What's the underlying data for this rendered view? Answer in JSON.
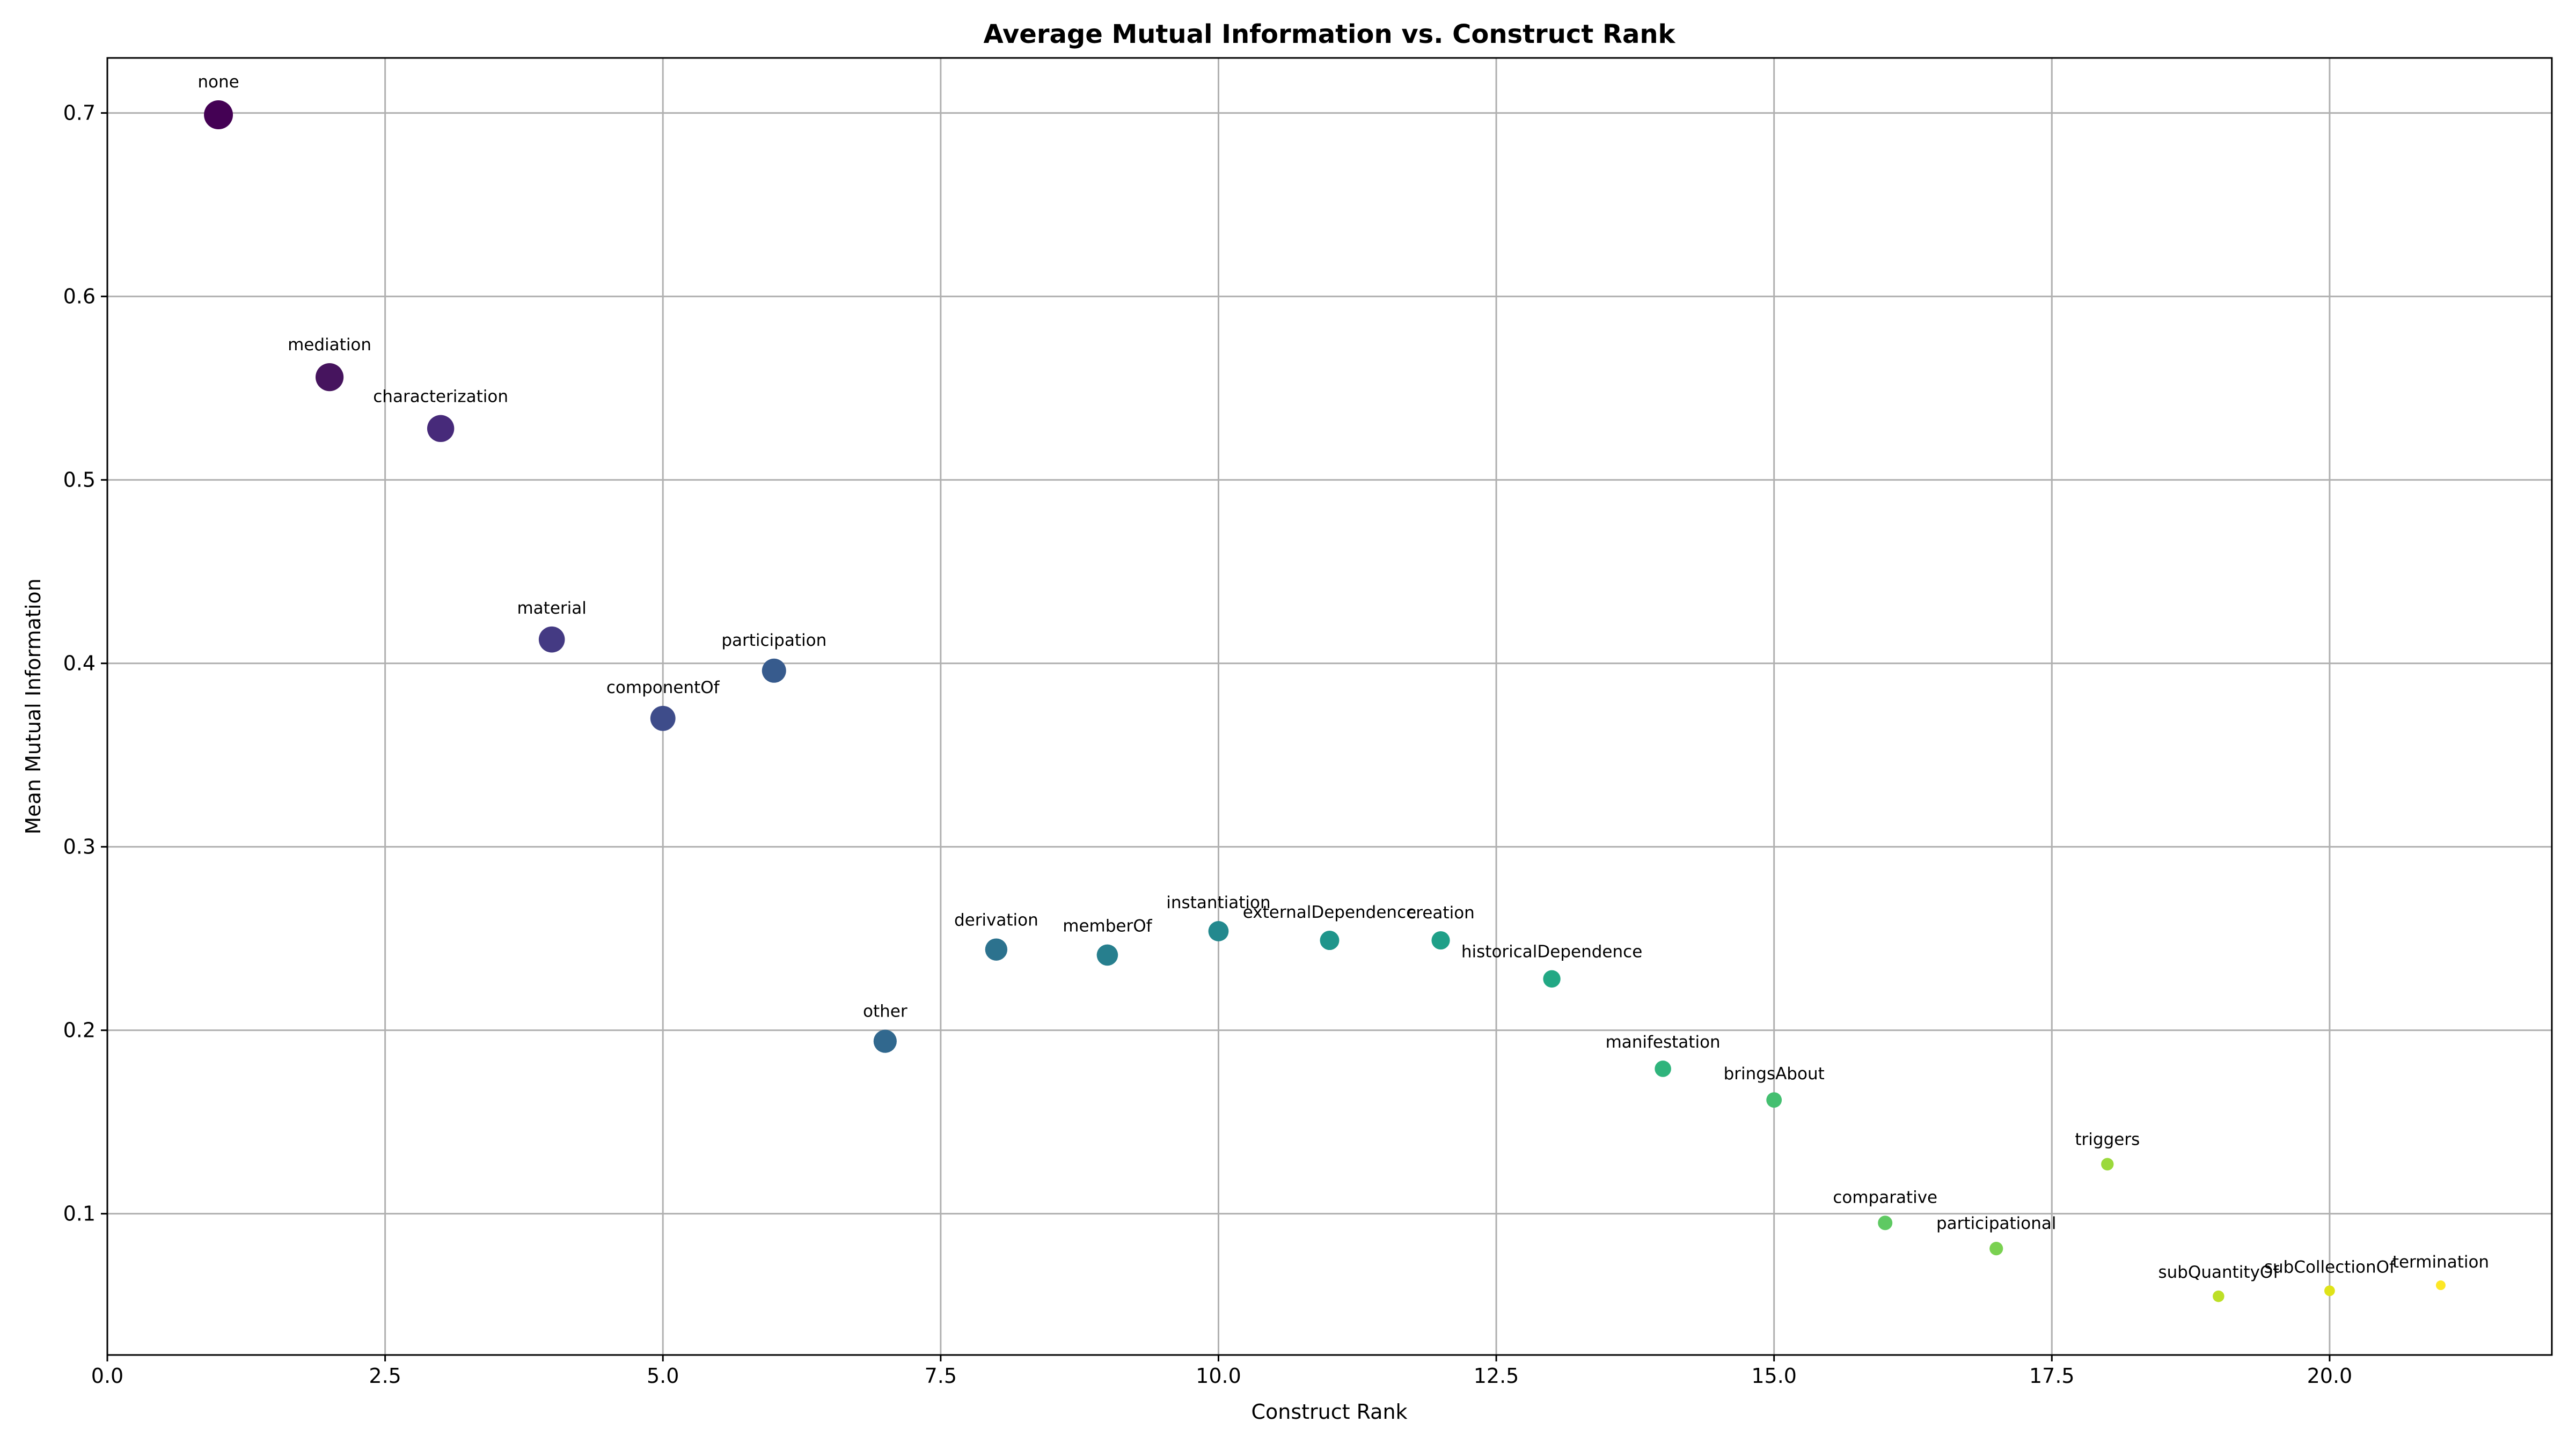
{
  "chart_data": {
    "type": "scatter",
    "title": "Average Mutual Information vs. Construct Rank",
    "xlabel": "Construct Rank",
    "ylabel": "Mean Mutual Information",
    "xlim": [
      0,
      22
    ],
    "ylim": [
      0.023,
      0.73
    ],
    "grid": true,
    "colormap": "viridis",
    "x_ticks": [
      "0.0",
      "2.5",
      "5.0",
      "7.5",
      "10.0",
      "12.5",
      "15.0",
      "17.5",
      "20.0"
    ],
    "y_ticks": [
      "0.1",
      "0.2",
      "0.3",
      "0.4",
      "0.5",
      "0.6",
      "0.7"
    ],
    "points": [
      {
        "label": "none",
        "x": 1,
        "y": 0.699,
        "color": "#440154"
      },
      {
        "label": "mediation",
        "x": 2,
        "y": 0.556,
        "color": "#46145e"
      },
      {
        "label": "characterization",
        "x": 3,
        "y": 0.528,
        "color": "#472a7a"
      },
      {
        "label": "material",
        "x": 4,
        "y": 0.413,
        "color": "#443a83"
      },
      {
        "label": "componentOf",
        "x": 5,
        "y": 0.37,
        "color": "#3e4c8a"
      },
      {
        "label": "participation",
        "x": 6,
        "y": 0.396,
        "color": "#375b8d"
      },
      {
        "label": "other",
        "x": 7,
        "y": 0.194,
        "color": "#31688e"
      },
      {
        "label": "derivation",
        "x": 8,
        "y": 0.244,
        "color": "#2c728e"
      },
      {
        "label": "memberOf",
        "x": 9,
        "y": 0.241,
        "color": "#277f8e"
      },
      {
        "label": "instantiation",
        "x": 10,
        "y": 0.254,
        "color": "#23898e"
      },
      {
        "label": "externalDependence",
        "x": 11,
        "y": 0.249,
        "color": "#1f958b"
      },
      {
        "label": "creation",
        "x": 12,
        "y": 0.249,
        "color": "#1fa088"
      },
      {
        "label": "historicalDependence",
        "x": 13,
        "y": 0.228,
        "color": "#22a884"
      },
      {
        "label": "manifestation",
        "x": 14,
        "y": 0.179,
        "color": "#2fb47c"
      },
      {
        "label": "bringsAbout",
        "x": 15,
        "y": 0.162,
        "color": "#44bf70"
      },
      {
        "label": "comparative",
        "x": 16,
        "y": 0.095,
        "color": "#5ec962"
      },
      {
        "label": "participational",
        "x": 17,
        "y": 0.081,
        "color": "#7ad151"
      },
      {
        "label": "triggers",
        "x": 18,
        "y": 0.127,
        "color": "#9bd93c"
      },
      {
        "label": "subQuantityOf",
        "x": 19,
        "y": 0.055,
        "color": "#bddf26"
      },
      {
        "label": "subCollectionOf",
        "x": 20,
        "y": 0.058,
        "color": "#dfe318"
      },
      {
        "label": "termination",
        "x": 21,
        "y": 0.061,
        "color": "#fde725"
      }
    ]
  }
}
